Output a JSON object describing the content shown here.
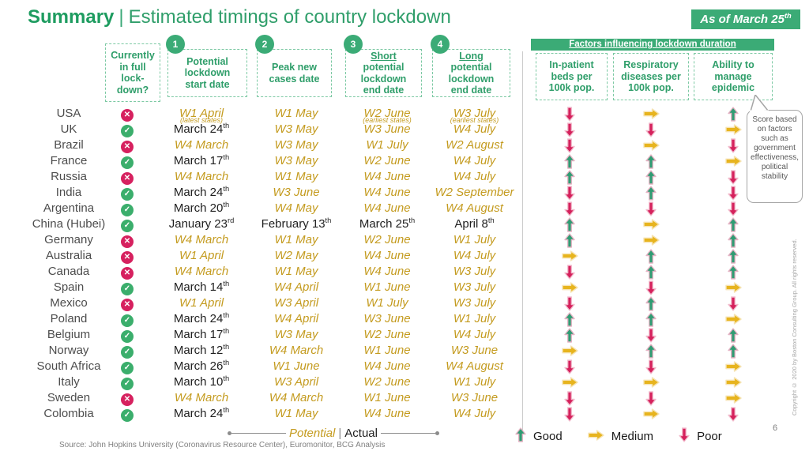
{
  "title": {
    "prefix": "Summary",
    "separator": "|",
    "rest": "Estimated timings of country lockdown"
  },
  "badge": {
    "text": "As of March 25",
    "sup": "th"
  },
  "header": {
    "lockdown_question": "Currently\nin full\nlock-\ndown?",
    "steps": [
      {
        "num": "1",
        "underlined": "",
        "text": "Potential\nlockdown\nstart date"
      },
      {
        "num": "2",
        "underlined": "",
        "text": "Peak new\ncases date"
      },
      {
        "num": "3",
        "underlined": "Short",
        "text": "potential\nlockdown\nend date"
      },
      {
        "num": "4",
        "underlined": "Long",
        "text": "potential\nlockdown\nend date"
      }
    ],
    "factors_bar": "Factors influencing lockdown duration",
    "factor_columns": [
      "In-patient\nbeds per\n100k pop.",
      "Respiratory\ndiseases per\n100k pop.",
      "Ability to\nmanage\nepidemic"
    ]
  },
  "callout": {
    "text": "Score based on factors such as government effectiveness, political stability"
  },
  "icons": {
    "check": "✓",
    "cross": "✕"
  },
  "colors": {
    "green": "#2f9e6a",
    "gold": "#c49b1f",
    "red": "#d6215f",
    "arrow_good_fill": "#2f9c73",
    "arrow_good_stroke": "#e5b3c4",
    "arrow_medium_fill": "#e7b41e",
    "arrow_medium_stroke": "#f6e3b2",
    "arrow_poor_fill": "#d5215c",
    "arrow_poor_stroke": "#f2bccd"
  },
  "table": {
    "rows": [
      {
        "name": "USA",
        "full_lockdown": false,
        "dates": [
          {
            "t": "W1 April",
            "note": "(latest states)"
          },
          {
            "t": "W1 May"
          },
          {
            "t": "W2 June",
            "note": "(earliest states)"
          },
          {
            "t": "W3 July",
            "note": "(earliest states)"
          }
        ],
        "factors": [
          "poor",
          "medium",
          "good"
        ]
      },
      {
        "name": "UK",
        "full_lockdown": true,
        "dates": [
          {
            "t": "March 24",
            "sup": "th",
            "actual": true
          },
          {
            "t": "W3 May"
          },
          {
            "t": "W3 June"
          },
          {
            "t": "W4 July"
          }
        ],
        "factors": [
          "poor",
          "poor",
          "medium"
        ]
      },
      {
        "name": "Brazil",
        "full_lockdown": false,
        "dates": [
          {
            "t": "W4 March"
          },
          {
            "t": "W3 May"
          },
          {
            "t": "W1 July"
          },
          {
            "t": "W2 August"
          }
        ],
        "factors": [
          "poor",
          "medium",
          "poor"
        ]
      },
      {
        "name": "France",
        "full_lockdown": true,
        "dates": [
          {
            "t": "March 17",
            "sup": "th",
            "actual": true
          },
          {
            "t": "W3 May"
          },
          {
            "t": "W2 June"
          },
          {
            "t": "W4 July"
          }
        ],
        "factors": [
          "good",
          "good",
          "medium"
        ]
      },
      {
        "name": "Russia",
        "full_lockdown": false,
        "dates": [
          {
            "t": "W4 March"
          },
          {
            "t": "W1 May"
          },
          {
            "t": "W4 June"
          },
          {
            "t": "W4 July"
          }
        ],
        "factors": [
          "good",
          "good",
          "poor"
        ]
      },
      {
        "name": "India",
        "full_lockdown": true,
        "dates": [
          {
            "t": "March 24",
            "sup": "th",
            "actual": true
          },
          {
            "t": "W3 June"
          },
          {
            "t": "W4 June"
          },
          {
            "t": "W2 September"
          }
        ],
        "factors": [
          "poor",
          "good",
          "poor"
        ]
      },
      {
        "name": "Argentina",
        "full_lockdown": true,
        "dates": [
          {
            "t": "March 20",
            "sup": "th",
            "actual": true
          },
          {
            "t": "W4 May"
          },
          {
            "t": "W4 June"
          },
          {
            "t": "W4 August"
          }
        ],
        "factors": [
          "poor",
          "poor",
          "poor"
        ]
      },
      {
        "name": "China (Hubei)",
        "full_lockdown": true,
        "dates": [
          {
            "t": "January 23",
            "sup": "rd",
            "actual": true
          },
          {
            "t": "February 13",
            "sup": "th",
            "actual": true
          },
          {
            "t": "March 25",
            "sup": "th",
            "actual": true
          },
          {
            "t": "April 8",
            "sup": "th",
            "actual": true
          }
        ],
        "factors": [
          "good",
          "medium",
          "good"
        ]
      },
      {
        "name": "Germany",
        "full_lockdown": false,
        "dates": [
          {
            "t": "W4 March"
          },
          {
            "t": "W1 May"
          },
          {
            "t": "W2 June"
          },
          {
            "t": "W1 July"
          }
        ],
        "factors": [
          "good",
          "medium",
          "good"
        ]
      },
      {
        "name": "Australia",
        "full_lockdown": false,
        "dates": [
          {
            "t": "W1 April"
          },
          {
            "t": "W2 May"
          },
          {
            "t": "W4 June"
          },
          {
            "t": "W4 July"
          }
        ],
        "factors": [
          "medium",
          "good",
          "good"
        ]
      },
      {
        "name": "Canada",
        "full_lockdown": false,
        "dates": [
          {
            "t": "W4 March"
          },
          {
            "t": "W1 May"
          },
          {
            "t": "W4 June"
          },
          {
            "t": "W3 July"
          }
        ],
        "factors": [
          "poor",
          "good",
          "good"
        ]
      },
      {
        "name": "Spain",
        "full_lockdown": true,
        "dates": [
          {
            "t": "March 14",
            "sup": "th",
            "actual": true
          },
          {
            "t": "W4 April"
          },
          {
            "t": "W1 June"
          },
          {
            "t": "W3 July"
          }
        ],
        "factors": [
          "medium",
          "poor",
          "medium"
        ]
      },
      {
        "name": "Mexico",
        "full_lockdown": false,
        "dates": [
          {
            "t": "W1 April"
          },
          {
            "t": "W3 April"
          },
          {
            "t": "W1 July"
          },
          {
            "t": "W3 July"
          }
        ],
        "factors": [
          "poor",
          "good",
          "poor"
        ]
      },
      {
        "name": "Poland",
        "full_lockdown": true,
        "dates": [
          {
            "t": "March 24",
            "sup": "th",
            "actual": true
          },
          {
            "t": "W4 April"
          },
          {
            "t": "W3 June"
          },
          {
            "t": "W1 July"
          }
        ],
        "factors": [
          "good",
          "good",
          "medium"
        ]
      },
      {
        "name": "Belgium",
        "full_lockdown": true,
        "dates": [
          {
            "t": "March 17",
            "sup": "th",
            "actual": true
          },
          {
            "t": "W3 May"
          },
          {
            "t": "W2 June"
          },
          {
            "t": "W4 July"
          }
        ],
        "factors": [
          "good",
          "poor",
          "good"
        ]
      },
      {
        "name": "Norway",
        "full_lockdown": true,
        "dates": [
          {
            "t": "March 12",
            "sup": "th",
            "actual": true
          },
          {
            "t": "W4 March"
          },
          {
            "t": "W1 June"
          },
          {
            "t": "W3 June"
          }
        ],
        "factors": [
          "medium",
          "good",
          "good"
        ]
      },
      {
        "name": "South Africa",
        "full_lockdown": true,
        "dates": [
          {
            "t": "March 26",
            "sup": "th",
            "actual": true
          },
          {
            "t": "W1 June"
          },
          {
            "t": "W4 June"
          },
          {
            "t": "W4 August"
          }
        ],
        "factors": [
          "poor",
          "poor",
          "medium"
        ]
      },
      {
        "name": "Italy",
        "full_lockdown": true,
        "dates": [
          {
            "t": "March 10",
            "sup": "th",
            "actual": true
          },
          {
            "t": "W3 April"
          },
          {
            "t": "W2 June"
          },
          {
            "t": "W1 July"
          }
        ],
        "factors": [
          "medium",
          "medium",
          "medium"
        ]
      },
      {
        "name": "Sweden",
        "full_lockdown": false,
        "dates": [
          {
            "t": "W4 March"
          },
          {
            "t": "W4 March"
          },
          {
            "t": "W1 June"
          },
          {
            "t": "W3 June"
          }
        ],
        "factors": [
          "poor",
          "poor",
          "medium"
        ]
      },
      {
        "name": "Colombia",
        "full_lockdown": true,
        "dates": [
          {
            "t": "March 24",
            "sup": "th",
            "actual": true
          },
          {
            "t": "W1 May"
          },
          {
            "t": "W4 June"
          },
          {
            "t": "W4 July"
          }
        ],
        "factors": [
          "poor",
          "medium",
          "poor"
        ]
      }
    ]
  },
  "legend": {
    "potential": "Potential",
    "separator": "|",
    "actual": "Actual",
    "good": "Good",
    "medium": "Medium",
    "poor": "Poor"
  },
  "footer": {
    "source": "Source: John Hopkins University (Coronavirus Resource Center), Euromonitor, BCG Analysis",
    "page": "6",
    "copyright": "Copyright © 2020 by Boston Consulting Group. All rights reserved."
  }
}
